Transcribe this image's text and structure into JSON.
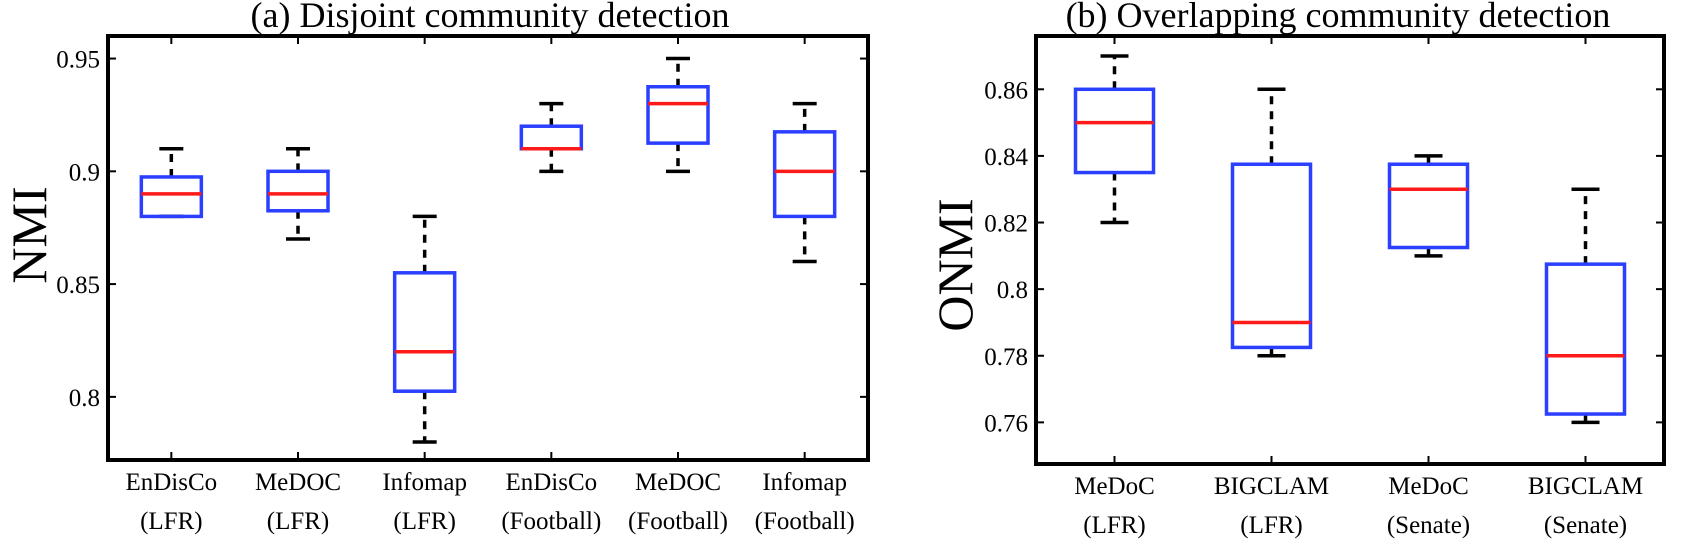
{
  "chart_data": [
    {
      "type": "box",
      "title": "(a) Disjoint community detection",
      "xlabel": "",
      "ylabel": "NMI",
      "ylim": [
        0.772,
        0.96
      ],
      "yticks": [
        0.8,
        0.85,
        0.9,
        0.95
      ],
      "ytick_labels": [
        "0.8",
        "0.85",
        "0.9",
        "0.95"
      ],
      "grid": false,
      "colors": {
        "box": "#2a3fff",
        "median": "#ff1a1a",
        "whisker": "#000000"
      },
      "categories": [
        [
          "EnDisCo",
          "(LFR)"
        ],
        [
          "MeDOC",
          "(LFR)"
        ],
        [
          "Infomap",
          "(LFR)"
        ],
        [
          "EnDisCo",
          "(Football)"
        ],
        [
          "MeDOC",
          "(Football)"
        ],
        [
          "Infomap",
          "(Football)"
        ]
      ],
      "boxes": [
        {
          "min": 0.88,
          "q1": 0.88,
          "median": 0.89,
          "q3": 0.8975,
          "max": 0.91
        },
        {
          "min": 0.87,
          "q1": 0.8825,
          "median": 0.89,
          "q3": 0.9,
          "max": 0.91
        },
        {
          "min": 0.78,
          "q1": 0.8025,
          "median": 0.82,
          "q3": 0.855,
          "max": 0.88
        },
        {
          "min": 0.9,
          "q1": 0.91,
          "median": 0.91,
          "q3": 0.92,
          "max": 0.93
        },
        {
          "min": 0.9,
          "q1": 0.9125,
          "median": 0.93,
          "q3": 0.9375,
          "max": 0.95
        },
        {
          "min": 0.86,
          "q1": 0.88,
          "median": 0.9,
          "q3": 0.9175,
          "max": 0.93
        }
      ]
    },
    {
      "type": "box",
      "title": "(b) Overlapping community detection",
      "xlabel": "",
      "ylabel": "ONMI",
      "ylim": [
        0.7475,
        0.876
      ],
      "yticks": [
        0.76,
        0.78,
        0.8,
        0.82,
        0.84,
        0.86
      ],
      "ytick_labels": [
        "0.76",
        "0.78",
        "0.8",
        "0.82",
        "0.84",
        "0.86"
      ],
      "grid": false,
      "colors": {
        "box": "#2a3fff",
        "median": "#ff1a1a",
        "whisker": "#000000"
      },
      "categories": [
        [
          "MeDoC",
          "(LFR)"
        ],
        [
          "BIGCLAM",
          "(LFR)"
        ],
        [
          "MeDoC",
          "(Senate)"
        ],
        [
          "BIGCLAM",
          "(Senate)"
        ]
      ],
      "boxes": [
        {
          "min": 0.82,
          "q1": 0.835,
          "median": 0.85,
          "q3": 0.86,
          "max": 0.87
        },
        {
          "min": 0.78,
          "q1": 0.7825,
          "median": 0.79,
          "q3": 0.8375,
          "max": 0.86
        },
        {
          "min": 0.81,
          "q1": 0.8125,
          "median": 0.83,
          "q3": 0.8375,
          "max": 0.84
        },
        {
          "min": 0.76,
          "q1": 0.7625,
          "median": 0.78,
          "q3": 0.8075,
          "max": 0.83
        }
      ]
    }
  ]
}
